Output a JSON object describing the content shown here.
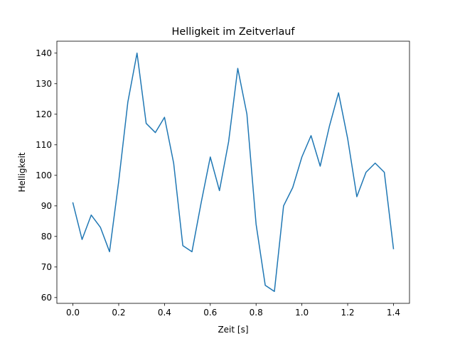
{
  "chart_data": {
    "type": "line",
    "title": "Helligkeit im Zeitverlauf",
    "xlabel": "Zeit [s]",
    "ylabel": "Helligkeit",
    "xlim": [
      -0.07,
      1.47
    ],
    "ylim": [
      58.1,
      143.9
    ],
    "xticks": [
      0.0,
      0.2,
      0.4,
      0.6,
      0.8,
      1.0,
      1.2,
      1.4
    ],
    "xtick_labels": [
      "0.0",
      "0.2",
      "0.4",
      "0.6",
      "0.8",
      "1.0",
      "1.2",
      "1.4"
    ],
    "yticks": [
      60,
      70,
      80,
      90,
      100,
      110,
      120,
      130,
      140
    ],
    "ytick_labels": [
      "60",
      "70",
      "80",
      "90",
      "100",
      "110",
      "120",
      "130",
      "140"
    ],
    "grid": false,
    "series": [
      {
        "color": "#1f77b4",
        "x": [
          0.0,
          0.04,
          0.08,
          0.12,
          0.16,
          0.2,
          0.24,
          0.28,
          0.32,
          0.36,
          0.4,
          0.44,
          0.48,
          0.52,
          0.56,
          0.6,
          0.64,
          0.68,
          0.72,
          0.76,
          0.8,
          0.84,
          0.88,
          0.92,
          0.96,
          1.0,
          1.04,
          1.08,
          1.12,
          1.16,
          1.2,
          1.24,
          1.28,
          1.32,
          1.36,
          1.4
        ],
        "y": [
          91,
          79,
          87,
          83,
          75,
          98,
          124,
          140,
          117,
          114,
          119,
          104,
          77,
          75,
          91,
          106,
          95,
          111,
          135,
          120,
          84,
          64,
          62,
          90,
          96,
          106,
          113,
          103,
          116,
          127,
          112,
          93,
          101,
          104,
          101,
          76
        ]
      }
    ]
  }
}
